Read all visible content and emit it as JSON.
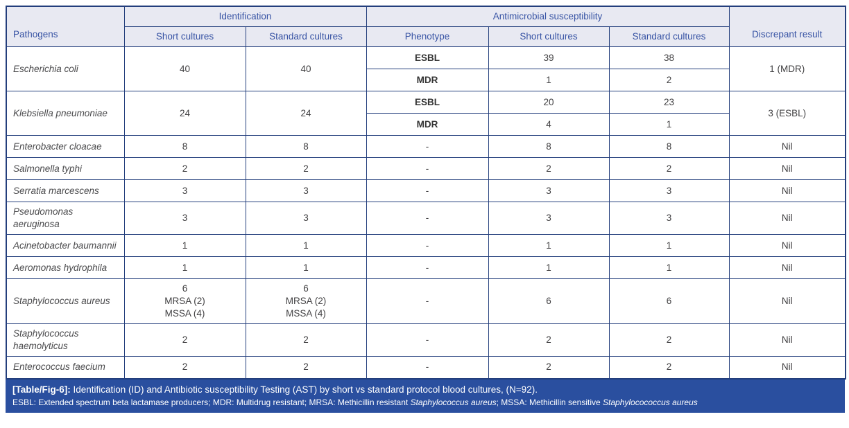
{
  "colors": {
    "border_navy": "#233e7c",
    "header_bg": "#e8e9f2",
    "header_text": "#3753a4",
    "body_text": "#414042",
    "footer_bg": "#2a4f9f",
    "footer_text": "#ffffff"
  },
  "table": {
    "header": {
      "pathogens": "Pathogens",
      "group_identification": "Identification",
      "group_susceptibility": "Antimicrobial susceptibility",
      "id_short": "Short cultures",
      "id_standard": "Standard cultures",
      "phenotype": "Phenotype",
      "ast_short": "Short cultures",
      "ast_standard": "Standard cultures",
      "discrepant": "Discrepant result"
    },
    "rows": [
      {
        "pathogen": "Escherichia coli",
        "id_short": "40",
        "id_standard": "40",
        "phenotypes": [
          {
            "phenotype": "ESBL",
            "ast_short": "39",
            "ast_standard": "38"
          },
          {
            "phenotype": "MDR",
            "ast_short": "1",
            "ast_standard": "2"
          }
        ],
        "discrepant": "1 (MDR)"
      },
      {
        "pathogen": "Klebsiella pneumoniae",
        "id_short": "24",
        "id_standard": "24",
        "phenotypes": [
          {
            "phenotype": "ESBL",
            "ast_short": "20",
            "ast_standard": "23"
          },
          {
            "phenotype": "MDR",
            "ast_short": "4",
            "ast_standard": "1"
          }
        ],
        "discrepant": "3 (ESBL)"
      },
      {
        "pathogen": "Enterobacter cloacae",
        "id_short": "8",
        "id_standard": "8",
        "phenotypes": [
          {
            "phenotype": "-",
            "ast_short": "8",
            "ast_standard": "8"
          }
        ],
        "discrepant": "Nil"
      },
      {
        "pathogen": "Salmonella typhi",
        "id_short": "2",
        "id_standard": "2",
        "phenotypes": [
          {
            "phenotype": "-",
            "ast_short": "2",
            "ast_standard": "2"
          }
        ],
        "discrepant": "Nil"
      },
      {
        "pathogen": "Serratia marcescens",
        "id_short": "3",
        "id_standard": "3",
        "phenotypes": [
          {
            "phenotype": "-",
            "ast_short": "3",
            "ast_standard": "3"
          }
        ],
        "discrepant": "Nil"
      },
      {
        "pathogen": "Pseudomonas aeruginosa",
        "id_short": "3",
        "id_standard": "3",
        "phenotypes": [
          {
            "phenotype": "-",
            "ast_short": "3",
            "ast_standard": "3"
          }
        ],
        "discrepant": "Nil"
      },
      {
        "pathogen": "Acinetobacter baumannii",
        "id_short": "1",
        "id_standard": "1",
        "phenotypes": [
          {
            "phenotype": "-",
            "ast_short": "1",
            "ast_standard": "1"
          }
        ],
        "discrepant": "Nil"
      },
      {
        "pathogen": "Aeromonas hydrophila",
        "id_short": "1",
        "id_standard": "1",
        "phenotypes": [
          {
            "phenotype": "-",
            "ast_short": "1",
            "ast_standard": "1"
          }
        ],
        "discrepant": "Nil"
      },
      {
        "pathogen": "Staphylococcus aureus",
        "id_short": "6\nMRSA (2)\nMSSA (4)",
        "id_standard": "6\nMRSA (2)\nMSSA (4)",
        "phenotypes": [
          {
            "phenotype": "-",
            "ast_short": "6",
            "ast_standard": "6"
          }
        ],
        "discrepant": "Nil"
      },
      {
        "pathogen": "Staphylococcus haemolyticus",
        "id_short": "2",
        "id_standard": "2",
        "phenotypes": [
          {
            "phenotype": "-",
            "ast_short": "2",
            "ast_standard": "2"
          }
        ],
        "discrepant": "Nil"
      },
      {
        "pathogen": "Enterococcus faecium",
        "id_short": "2",
        "id_standard": "2",
        "phenotypes": [
          {
            "phenotype": "-",
            "ast_short": "2",
            "ast_standard": "2"
          }
        ],
        "discrepant": "Nil"
      }
    ]
  },
  "footer": {
    "label": "[Table/Fig-6]:",
    "caption": " Identification (ID) and Antibiotic susceptibility Testing (AST) by short vs standard protocol blood cultures, (N=92).",
    "footnote_part1": "ESBL: Extended spectrum beta lactamase producers; MDR: Multidrug resistant; MRSA: Methicillin resistant ",
    "footnote_italic1": "Staphylococcus aureus",
    "footnote_part2": "; MSSA: Methicillin sensitive ",
    "footnote_italic2": "Staphylocococcus aureus"
  }
}
